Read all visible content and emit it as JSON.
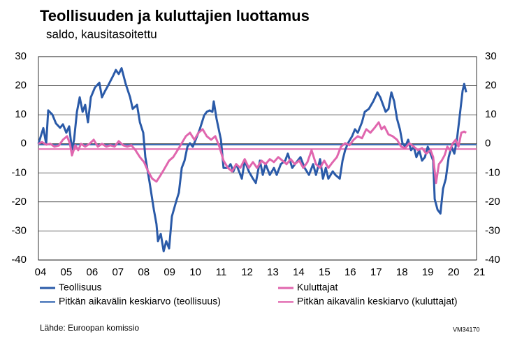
{
  "chart_data": {
    "type": "line",
    "title": "Teollisuuden ja kuluttajien luottamus",
    "subtitle": "saldo, kausitasoitettu",
    "source": "Lähde: Euroopan komissio",
    "code": "VM34170",
    "xlim": [
      2004.42,
      2021.39
    ],
    "xticks": [
      {
        "value": 2004.5,
        "label": "04"
      },
      {
        "value": 2005.5,
        "label": "05"
      },
      {
        "value": 2006.5,
        "label": "06"
      },
      {
        "value": 2007.5,
        "label": "07"
      },
      {
        "value": 2008.5,
        "label": "08"
      },
      {
        "value": 2009.5,
        "label": "09"
      },
      {
        "value": 2010.5,
        "label": "10"
      },
      {
        "value": 2011.5,
        "label": "11"
      },
      {
        "value": 2012.5,
        "label": "12"
      },
      {
        "value": 2013.5,
        "label": "13"
      },
      {
        "value": 2014.5,
        "label": "14"
      },
      {
        "value": 2015.5,
        "label": "15"
      },
      {
        "value": 2016.5,
        "label": "16"
      },
      {
        "value": 2017.5,
        "label": "17"
      },
      {
        "value": 2018.5,
        "label": "18"
      },
      {
        "value": 2019.5,
        "label": "19"
      },
      {
        "value": 2020.5,
        "label": "20"
      },
      {
        "value": 2021.5,
        "label": "21"
      }
    ],
    "ylim": [
      -40,
      30
    ],
    "yticks": [
      30,
      20,
      10,
      0,
      -10,
      -20,
      -30,
      -40
    ],
    "y2lim": [
      -40,
      30
    ],
    "y2ticks": [
      30,
      20,
      10,
      0,
      -10,
      -20,
      -30,
      -40
    ],
    "grid": true,
    "series": [
      {
        "name": "Teollisuus",
        "color": "#2a5aa8",
        "x": [
          2004.42,
          2004.61,
          2004.72,
          2004.8,
          2004.96,
          2005.1,
          2005.26,
          2005.37,
          2005.5,
          2005.61,
          2005.72,
          2005.8,
          2005.91,
          2006.02,
          2006.13,
          2006.23,
          2006.34,
          2006.45,
          2006.61,
          2006.78,
          2006.88,
          2006.99,
          2007.15,
          2007.32,
          2007.42,
          2007.53,
          2007.64,
          2007.8,
          2007.97,
          2008.07,
          2008.24,
          2008.35,
          2008.48,
          2008.56,
          2008.72,
          2008.89,
          2008.99,
          2009.05,
          2009.16,
          2009.27,
          2009.37,
          2009.48,
          2009.59,
          2009.75,
          2009.86,
          2009.97,
          2010.08,
          2010.19,
          2010.29,
          2010.4,
          2010.51,
          2010.67,
          2010.84,
          2010.94,
          2011.05,
          2011.16,
          2011.21,
          2011.32,
          2011.49,
          2011.59,
          2011.76,
          2011.86,
          2011.97,
          2012.08,
          2012.19,
          2012.3,
          2012.41,
          2012.57,
          2012.73,
          2012.84,
          2013.0,
          2013.11,
          2013.22,
          2013.38,
          2013.54,
          2013.65,
          2013.81,
          2013.98,
          2014.08,
          2014.25,
          2014.41,
          2014.57,
          2014.73,
          2014.9,
          2015.06,
          2015.17,
          2015.33,
          2015.44,
          2015.55,
          2015.65,
          2015.82,
          2015.92,
          2016.09,
          2016.2,
          2016.3,
          2016.41,
          2016.57,
          2016.68,
          2016.79,
          2016.95,
          2017.06,
          2017.22,
          2017.39,
          2017.55,
          2017.66,
          2017.77,
          2017.87,
          2017.98,
          2018.09,
          2018.2,
          2018.31,
          2018.42,
          2018.52,
          2018.63,
          2018.74,
          2018.85,
          2018.96,
          2019.06,
          2019.17,
          2019.28,
          2019.39,
          2019.5,
          2019.61,
          2019.71,
          2019.77,
          2019.88,
          2019.99,
          2020.09,
          2020.2,
          2020.31,
          2020.42,
          2020.53,
          2020.63,
          2020.74,
          2020.85,
          2020.91,
          2020.99
        ],
        "values": [
          0,
          5.4,
          0,
          11.5,
          10,
          7,
          5.5,
          6.7,
          3.8,
          6,
          -2,
          1.4,
          11,
          16,
          11,
          13.4,
          7.4,
          16,
          19.4,
          21,
          16,
          18,
          20.6,
          23.5,
          25.4,
          24,
          26,
          20.6,
          16,
          12,
          13.4,
          7.4,
          3.8,
          -4.6,
          -13,
          -22.7,
          -27.6,
          -33.5,
          -31,
          -37,
          -33.5,
          -36,
          -25,
          -20,
          -16.8,
          -8.3,
          -5.8,
          -1,
          0.2,
          -1,
          1.4,
          5,
          9.8,
          11,
          11.5,
          11,
          14.6,
          8.6,
          1.4,
          -8.3,
          -8.3,
          -7,
          -9.5,
          -7,
          -9.5,
          -12,
          -5.8,
          -9.5,
          -12,
          -13.5,
          -5.8,
          -10.7,
          -7,
          -10.7,
          -8.3,
          -10.7,
          -7,
          -5.8,
          -3.4,
          -8.3,
          -6.4,
          -4.6,
          -8.3,
          -10.7,
          -7,
          -10.7,
          -5.3,
          -12,
          -8.3,
          -12,
          -9.5,
          -10.7,
          -12,
          -5.8,
          -2.2,
          0.2,
          2.6,
          5,
          3.8,
          7.4,
          11,
          12,
          14.6,
          17.7,
          16,
          13.4,
          11,
          12,
          17.7,
          14.6,
          8.6,
          5,
          0.2,
          -1,
          1.4,
          -2.2,
          -1,
          -4.6,
          -2.2,
          -5.8,
          -4.6,
          -1,
          -3.4,
          -5.8,
          -19,
          -22.7,
          -24,
          -15.5,
          -12,
          -4.6,
          -1,
          -3.4,
          1.4,
          9.8,
          18.2,
          20.6,
          17.7
        ]
      },
      {
        "name": "Kuluttajat",
        "color": "#e066ae",
        "x": [
          2004.42,
          2004.56,
          2004.72,
          2004.88,
          2005.04,
          2005.21,
          2005.37,
          2005.53,
          2005.64,
          2005.72,
          2005.85,
          2005.96,
          2006.07,
          2006.23,
          2006.4,
          2006.56,
          2006.72,
          2006.88,
          2007.05,
          2007.21,
          2007.37,
          2007.53,
          2007.7,
          2007.86,
          2008.02,
          2008.18,
          2008.35,
          2008.51,
          2008.67,
          2008.83,
          2008.99,
          2009.16,
          2009.32,
          2009.48,
          2009.64,
          2009.81,
          2009.97,
          2010.13,
          2010.29,
          2010.46,
          2010.62,
          2010.78,
          2010.94,
          2011.11,
          2011.27,
          2011.43,
          2011.59,
          2011.76,
          2011.92,
          2012.08,
          2012.24,
          2012.41,
          2012.57,
          2012.73,
          2012.89,
          2013.06,
          2013.22,
          2013.38,
          2013.54,
          2013.71,
          2013.87,
          2014.03,
          2014.19,
          2014.35,
          2014.52,
          2014.68,
          2014.84,
          2015.0,
          2015.17,
          2015.33,
          2015.49,
          2015.65,
          2015.82,
          2015.98,
          2016.14,
          2016.3,
          2016.47,
          2016.63,
          2016.79,
          2016.95,
          2017.12,
          2017.28,
          2017.44,
          2017.6,
          2017.71,
          2017.82,
          2017.98,
          2018.14,
          2018.31,
          2018.47,
          2018.63,
          2018.79,
          2018.96,
          2019.12,
          2019.28,
          2019.44,
          2019.61,
          2019.71,
          2019.82,
          2019.93,
          2020.04,
          2020.15,
          2020.26,
          2020.36,
          2020.47,
          2020.58,
          2020.69,
          2020.8,
          2020.91,
          2020.99
        ],
        "values": [
          0,
          0.6,
          -0.3,
          0,
          -1,
          -0.6,
          1.4,
          2.6,
          0,
          -4,
          -0.5,
          -2.2,
          0,
          -1,
          0,
          1.4,
          -1,
          0,
          -1,
          -0.5,
          -1,
          0.9,
          -0.5,
          -1,
          -0.5,
          -2.2,
          -4.6,
          -6.3,
          -9.5,
          -12,
          -13,
          -10.7,
          -8.3,
          -5.8,
          -4.6,
          -2.2,
          0.2,
          2.6,
          3.8,
          1.4,
          3.8,
          5,
          2.6,
          1.4,
          2.6,
          -1,
          -5.8,
          -8.3,
          -9.5,
          -7,
          -8.3,
          -5.3,
          -8.3,
          -6.3,
          -8.3,
          -5.8,
          -7,
          -5.3,
          -6.3,
          -4.6,
          -5.8,
          -7,
          -5.3,
          -7,
          -5.8,
          -8.3,
          -6.3,
          -2.2,
          -7,
          -8.3,
          -5.8,
          -8.3,
          -6.3,
          -4.6,
          -1,
          0.2,
          -0.5,
          1.4,
          2.6,
          1.9,
          5,
          3.8,
          5.5,
          7.4,
          5,
          6,
          3.2,
          2.6,
          1.4,
          -1,
          -1.5,
          0.2,
          -1,
          -2.2,
          -1.5,
          -3.4,
          -2.2,
          -4.6,
          -13.5,
          -7,
          -5.8,
          -4,
          -1,
          -2.2,
          0.2,
          1.4,
          -1,
          3.8,
          4.2,
          3.8
        ]
      }
    ],
    "reference_lines": [
      {
        "name": "Pitkän aikavälin keskiarvo (teollisuus)",
        "color": "#3d6db5",
        "value": -0.3
      },
      {
        "name": "Pitkän aikavälin keskiarvo (kuluttajat)",
        "color": "#e066ae",
        "value": -1.8
      }
    ]
  }
}
